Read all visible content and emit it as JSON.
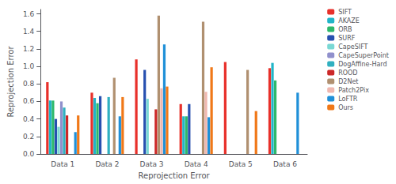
{
  "chart_data": {
    "type": "bar",
    "xlabel": "Reprojection Error",
    "ylabel": "Reprojection Error",
    "categories": [
      "Data 1",
      "Data 2",
      "Data 3",
      "Data 4",
      "Data 5",
      "Data 6"
    ],
    "series": [
      {
        "name": "SIFT",
        "color": "#e8302a",
        "values": [
          0.82,
          0.7,
          1.08,
          0.57,
          1.05,
          0.98
        ]
      },
      {
        "name": "AKAZE",
        "color": "#21b5c8",
        "values": [
          0.61,
          0.64,
          0.0,
          0.43,
          0.0,
          1.04
        ]
      },
      {
        "name": "ORB",
        "color": "#2db86b",
        "values": [
          0.61,
          0.58,
          0.0,
          0.43,
          0.0,
          0.84
        ]
      },
      {
        "name": "SURF",
        "color": "#2750b0",
        "values": [
          0.4,
          0.66,
          0.96,
          0.57,
          0.0,
          0.0
        ]
      },
      {
        "name": "CapeSIFT",
        "color": "#7ad8d4",
        "values": [
          0.31,
          0.0,
          0.63,
          0.0,
          0.0,
          0.0
        ]
      },
      {
        "name": "CapeSuperPoint",
        "color": "#9090cc",
        "values": [
          0.6,
          0.0,
          0.0,
          0.0,
          0.0,
          0.0
        ]
      },
      {
        "name": "DogAffine-Hard",
        "color": "#30b0c0",
        "values": [
          0.53,
          0.65,
          0.0,
          0.0,
          0.0,
          0.0
        ]
      },
      {
        "name": "ROOD",
        "color": "#cc2828",
        "values": [
          0.44,
          0.0,
          0.51,
          0.0,
          0.0,
          0.0
        ]
      },
      {
        "name": "D2Net",
        "color": "#b09070",
        "values": [
          0.0,
          0.87,
          1.58,
          1.51,
          0.96,
          0.0
        ]
      },
      {
        "name": "Patch2Pix",
        "color": "#f0b8b0",
        "values": [
          0.0,
          0.0,
          0.75,
          0.71,
          0.0,
          0.0
        ]
      },
      {
        "name": "LoFTR",
        "color": "#2090d8",
        "values": [
          0.25,
          0.43,
          1.25,
          0.42,
          0.0,
          0.7
        ]
      },
      {
        "name": "Ours",
        "color": "#f07818",
        "values": [
          0.44,
          0.65,
          0.77,
          0.99,
          0.49,
          0.0
        ]
      }
    ],
    "ylim": [
      0.0,
      1.65
    ],
    "yticks": [
      {
        "value": 0.0,
        "label": "0.0"
      },
      0.2,
      0.4,
      0.6,
      0.8,
      {
        "value": 1.0,
        "label": "1.0"
      },
      1.2,
      1.4,
      1.6
    ],
    "grid": false,
    "legend": "right"
  }
}
